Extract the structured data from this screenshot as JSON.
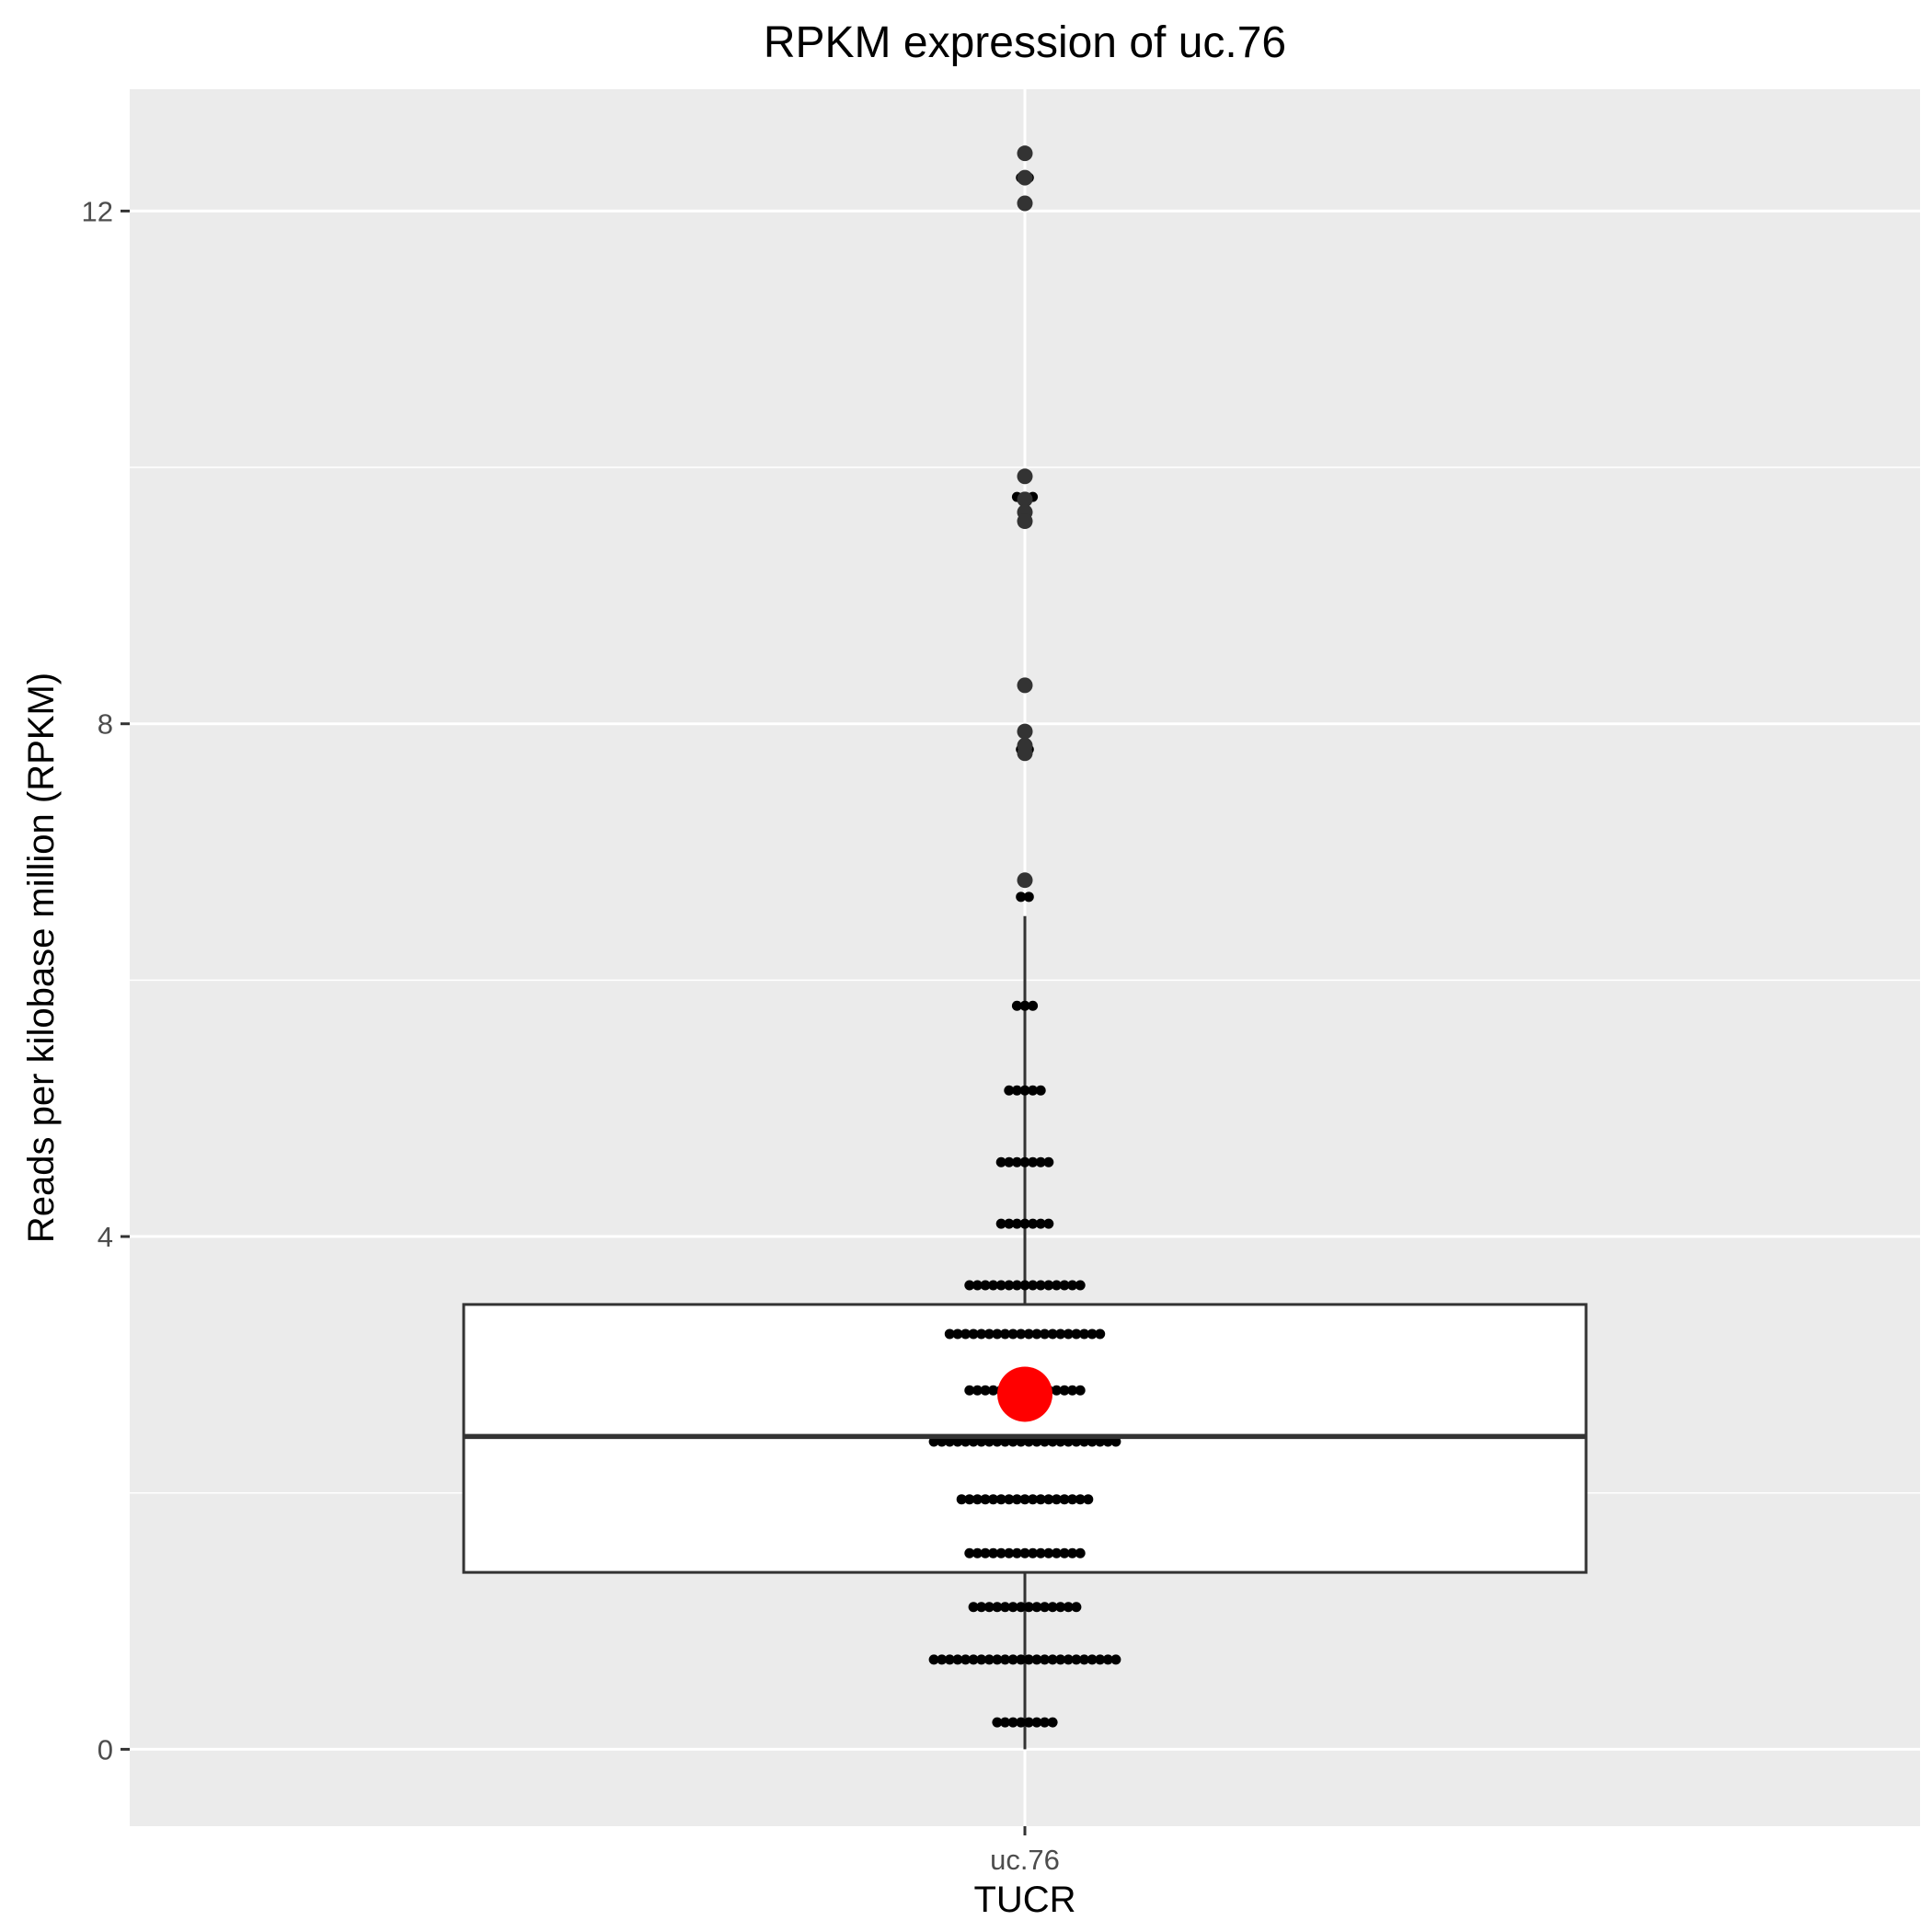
{
  "chart_data": {
    "type": "box",
    "title": "RPKM expression of  uc.76",
    "xlabel": "TUCR",
    "ylabel": "Reads per kilobase million (RPKM)",
    "categories": [
      "uc.76"
    ],
    "ylim": [
      -0.6,
      12.95
    ],
    "y_ticks": [
      0,
      4,
      8,
      12
    ],
    "grid": true,
    "box": {
      "category": "uc.76",
      "whisker_low": 0.0,
      "q1": 1.38,
      "median": 2.44,
      "q3": 3.47,
      "whisker_high": 6.5,
      "mean": 2.77
    },
    "outliers": [
      12.45,
      12.26,
      12.06,
      9.93,
      9.75,
      9.65,
      9.58,
      8.3,
      7.94,
      7.83,
      7.77,
      6.78
    ],
    "jitter_rows": [
      {
        "y": 0.21,
        "count": 8
      },
      {
        "y": 0.7,
        "count": 24
      },
      {
        "y": 1.11,
        "count": 14
      },
      {
        "y": 1.53,
        "count": 15
      },
      {
        "y": 1.95,
        "count": 17
      },
      {
        "y": 2.4,
        "count": 24
      },
      {
        "y": 2.8,
        "count": 15
      },
      {
        "y": 3.24,
        "count": 20
      },
      {
        "y": 3.62,
        "count": 15
      },
      {
        "y": 4.1,
        "count": 7
      },
      {
        "y": 4.58,
        "count": 7
      },
      {
        "y": 5.14,
        "count": 5
      },
      {
        "y": 5.8,
        "count": 3
      },
      {
        "y": 6.65,
        "count": 2
      },
      {
        "y": 7.8,
        "count": 2
      },
      {
        "y": 9.77,
        "count": 3
      },
      {
        "y": 12.26,
        "count": 2
      }
    ],
    "colors": {
      "panel": "#ebebeb",
      "grid": "#ffffff",
      "box_fill": "#ffffff",
      "box_stroke": "#333333",
      "point": "#000000",
      "outlier": "#333333",
      "mean": "#ff0000",
      "tick": "#333333"
    }
  }
}
